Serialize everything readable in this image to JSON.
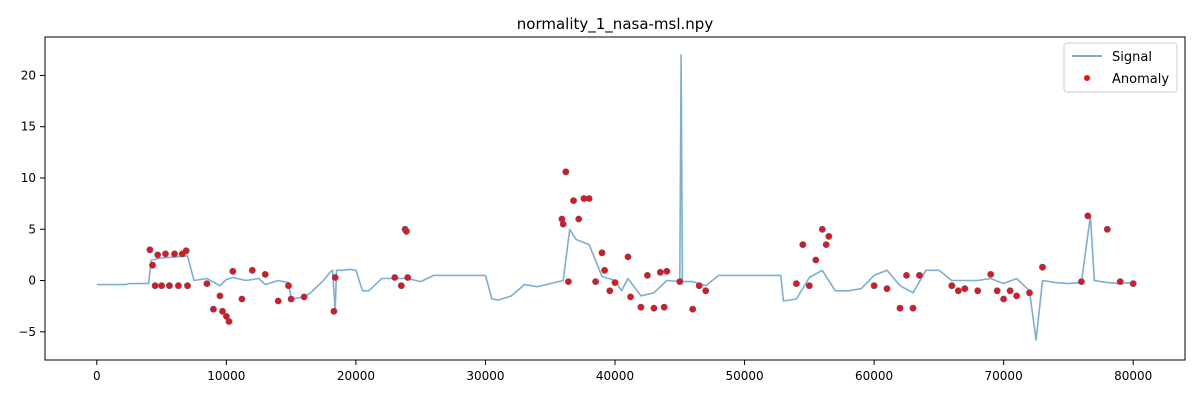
{
  "chart_data": {
    "type": "line",
    "title": "normality_1_nasa-msl.npy",
    "xlabel": "",
    "ylabel": "",
    "xlim": [
      -4000,
      84000
    ],
    "ylim": [
      -7.75,
      23.75
    ],
    "x_ticks": [
      0,
      10000,
      20000,
      30000,
      40000,
      50000,
      60000,
      70000,
      80000
    ],
    "y_ticks": [
      -5,
      0,
      5,
      10,
      15,
      20
    ],
    "grid": false,
    "legend": {
      "placement": "top-right",
      "entries": [
        "Signal",
        "Anomaly"
      ]
    },
    "colors": {
      "signal": "#7bafd4",
      "anomaly": "#ee1111",
      "anomaly_edge": "#7a4a6a"
    },
    "series": [
      {
        "name": "Signal",
        "kind": "line",
        "x": [
          0,
          1500,
          2200,
          2500,
          4000,
          4200,
          5000,
          6000,
          7000,
          7500,
          8500,
          9500,
          10000,
          10500,
          11500,
          12500,
          13000,
          14000,
          14800,
          15000,
          16000,
          16500,
          17000,
          17500,
          18000,
          18200,
          18400,
          18500,
          19000,
          19500,
          20000,
          20500,
          21000,
          22000,
          23000,
          24000,
          25000,
          26000,
          27000,
          28000,
          29000,
          30000,
          30500,
          31000,
          32000,
          33000,
          34000,
          35000,
          36000,
          36500,
          37000,
          38000,
          39000,
          40000,
          40500,
          41000,
          42000,
          43000,
          44000,
          45000,
          45100,
          45200,
          46000,
          47000,
          48000,
          49000,
          50000,
          51000,
          52000,
          52800,
          53000,
          54000,
          55000,
          56000,
          57000,
          58000,
          59000,
          60000,
          61000,
          62000,
          63000,
          64000,
          65000,
          66000,
          67000,
          68000,
          69000,
          70000,
          71000,
          72000,
          72500,
          73000,
          74000,
          75000,
          76000,
          76700,
          77000,
          78000,
          79000,
          80000
        ],
        "y": [
          -0.4,
          -0.4,
          -0.4,
          -0.3,
          -0.3,
          2.0,
          2.2,
          2.3,
          2.4,
          0.0,
          0.2,
          -0.5,
          0.1,
          0.3,
          0.0,
          0.2,
          -0.4,
          0.0,
          -0.2,
          -1.8,
          -1.6,
          -1.2,
          -0.6,
          0.0,
          0.8,
          1.0,
          -3.0,
          1.0,
          1.0,
          1.1,
          1.0,
          -1.0,
          -1.0,
          0.2,
          0.2,
          0.2,
          -0.1,
          0.5,
          0.5,
          0.5,
          0.5,
          0.5,
          -1.8,
          -1.9,
          -1.5,
          -0.4,
          -0.6,
          -0.3,
          0.0,
          5.0,
          4.0,
          3.5,
          0.4,
          0.0,
          -1.0,
          0.2,
          -1.5,
          -1.2,
          0.0,
          -0.1,
          22.0,
          -0.1,
          -0.1,
          -0.5,
          0.5,
          0.5,
          0.5,
          0.5,
          0.5,
          0.5,
          -2.0,
          -1.8,
          0.3,
          1.0,
          -1.0,
          -1.0,
          -0.8,
          0.5,
          1.0,
          -0.5,
          -1.2,
          1.0,
          1.0,
          0.0,
          0.0,
          0.0,
          0.2,
          -0.3,
          0.2,
          -1.0,
          -5.8,
          0.0,
          -0.2,
          -0.3,
          -0.2,
          6.3,
          0.0,
          -0.2,
          -0.3,
          -0.2
        ]
      },
      {
        "name": "Anomaly",
        "kind": "scatter",
        "x": [
          4100,
          4300,
          4500,
          4700,
          5000,
          5300,
          5600,
          6000,
          6300,
          6600,
          6900,
          7000,
          8500,
          9000,
          9500,
          9700,
          10000,
          10200,
          10500,
          11200,
          12000,
          13000,
          14000,
          14800,
          15000,
          16000,
          18300,
          18400,
          23000,
          23500,
          23800,
          23900,
          24000,
          35900,
          36000,
          36200,
          36400,
          36800,
          37200,
          37600,
          38000,
          38500,
          39000,
          39200,
          39600,
          40000,
          41000,
          41200,
          42000,
          42500,
          43000,
          43500,
          43800,
          44000,
          45000,
          46000,
          46500,
          47000,
          54000,
          54500,
          55000,
          55500,
          56000,
          56300,
          56500,
          60000,
          61000,
          62000,
          62500,
          63000,
          63500,
          66000,
          66500,
          67000,
          68000,
          69000,
          69500,
          70000,
          70500,
          71000,
          72000,
          73000,
          76000,
          76500,
          78000,
          79000,
          80000
        ],
        "y": [
          3.0,
          1.5,
          -0.5,
          2.5,
          -0.5,
          2.6,
          -0.5,
          2.6,
          -0.5,
          2.6,
          2.9,
          -0.5,
          -0.3,
          -2.8,
          -1.5,
          -3.0,
          -3.5,
          -4.0,
          0.9,
          -1.8,
          1.0,
          0.6,
          -2.0,
          -0.5,
          -1.8,
          -1.6,
          -3.0,
          0.3,
          0.3,
          -0.5,
          5.0,
          4.8,
          0.3,
          6.0,
          5.5,
          10.6,
          -0.1,
          7.8,
          6.0,
          8.0,
          8.0,
          -0.1,
          2.7,
          1.0,
          -1.0,
          -0.2,
          2.3,
          -1.6,
          -2.6,
          0.5,
          -2.7,
          0.8,
          -2.6,
          0.9,
          -0.1,
          -2.8,
          -0.5,
          -1.0,
          -0.3,
          3.5,
          -0.5,
          2.0,
          5.0,
          3.5,
          4.3,
          -0.5,
          -0.8,
          -2.7,
          0.5,
          -2.7,
          0.5,
          -0.5,
          -1.0,
          -0.8,
          -1.0,
          0.6,
          -1.0,
          -1.8,
          -1.0,
          -1.5,
          -1.2,
          1.3,
          -0.1,
          6.3,
          5.0,
          -0.1,
          -0.3
        ]
      }
    ]
  }
}
